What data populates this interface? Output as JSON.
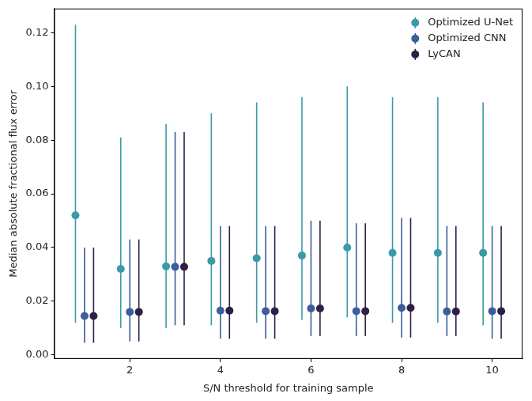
{
  "chart_data": {
    "type": "scatter",
    "x_label": "S/N threshold for training sample",
    "y_label": "Median absolute fractional flux error",
    "xlim": [
      0.33,
      10.67
    ],
    "xticks": [
      2,
      4,
      6,
      8,
      10
    ],
    "ylim": [
      -0.0015,
      0.129
    ],
    "yticks": [
      {
        "value": 0,
        "label": "0.00"
      },
      {
        "value": 0.02,
        "label": "0.02"
      },
      {
        "value": 0.04,
        "label": "0.04"
      },
      {
        "value": 0.06,
        "label": "0.06"
      },
      {
        "value": 0.08,
        "label": "0.08"
      },
      {
        "value": 0.1,
        "label": "0.10"
      },
      {
        "value": 0.12,
        "label": "0.12"
      }
    ],
    "grid": false,
    "legend": "upper right",
    "series": [
      {
        "name": "Optimized U-Net",
        "color": "#3a9aa6",
        "marker": "circle",
        "x": [
          0.8,
          1.8,
          2.8,
          3.8,
          4.8,
          5.8,
          6.8,
          7.8,
          8.8,
          9.8
        ],
        "values": [
          0.052,
          0.032,
          0.033,
          0.035,
          0.036,
          0.037,
          0.04,
          0.038,
          0.038,
          0.038
        ],
        "error_low": [
          0.012,
          0.01,
          0.01,
          0.011,
          0.012,
          0.013,
          0.014,
          0.012,
          0.012,
          0.011
        ],
        "error_high": [
          0.123,
          0.081,
          0.086,
          0.09,
          0.094,
          0.096,
          0.1,
          0.096,
          0.096,
          0.094
        ]
      },
      {
        "name": "Optimized CNN",
        "color": "#3d5e9c",
        "marker": "circle",
        "x": [
          1,
          2,
          3,
          4,
          5,
          6,
          7,
          8,
          9,
          10
        ],
        "values": [
          0.0145,
          0.016,
          0.0328,
          0.0165,
          0.0163,
          0.0173,
          0.0163,
          0.0175,
          0.0162,
          0.0163
        ],
        "error_low": [
          0.0045,
          0.005,
          0.011,
          0.006,
          0.006,
          0.007,
          0.007,
          0.0065,
          0.007,
          0.006
        ],
        "error_high": [
          0.04,
          0.043,
          0.083,
          0.048,
          0.048,
          0.05,
          0.049,
          0.051,
          0.048,
          0.048
        ]
      },
      {
        "name": "LyCAN",
        "color": "#2e1f46",
        "marker": "circle",
        "x": [
          1.2,
          2.2,
          3.2,
          4.2,
          5.2,
          6.2,
          7.2,
          8.2,
          9.2,
          10.2
        ],
        "values": [
          0.0145,
          0.016,
          0.0328,
          0.0165,
          0.0163,
          0.0173,
          0.0163,
          0.0175,
          0.0162,
          0.0163
        ],
        "error_low": [
          0.0045,
          0.005,
          0.011,
          0.006,
          0.006,
          0.007,
          0.007,
          0.0065,
          0.007,
          0.006
        ],
        "error_high": [
          0.04,
          0.043,
          0.083,
          0.048,
          0.048,
          0.05,
          0.049,
          0.051,
          0.048,
          0.048
        ]
      }
    ]
  }
}
